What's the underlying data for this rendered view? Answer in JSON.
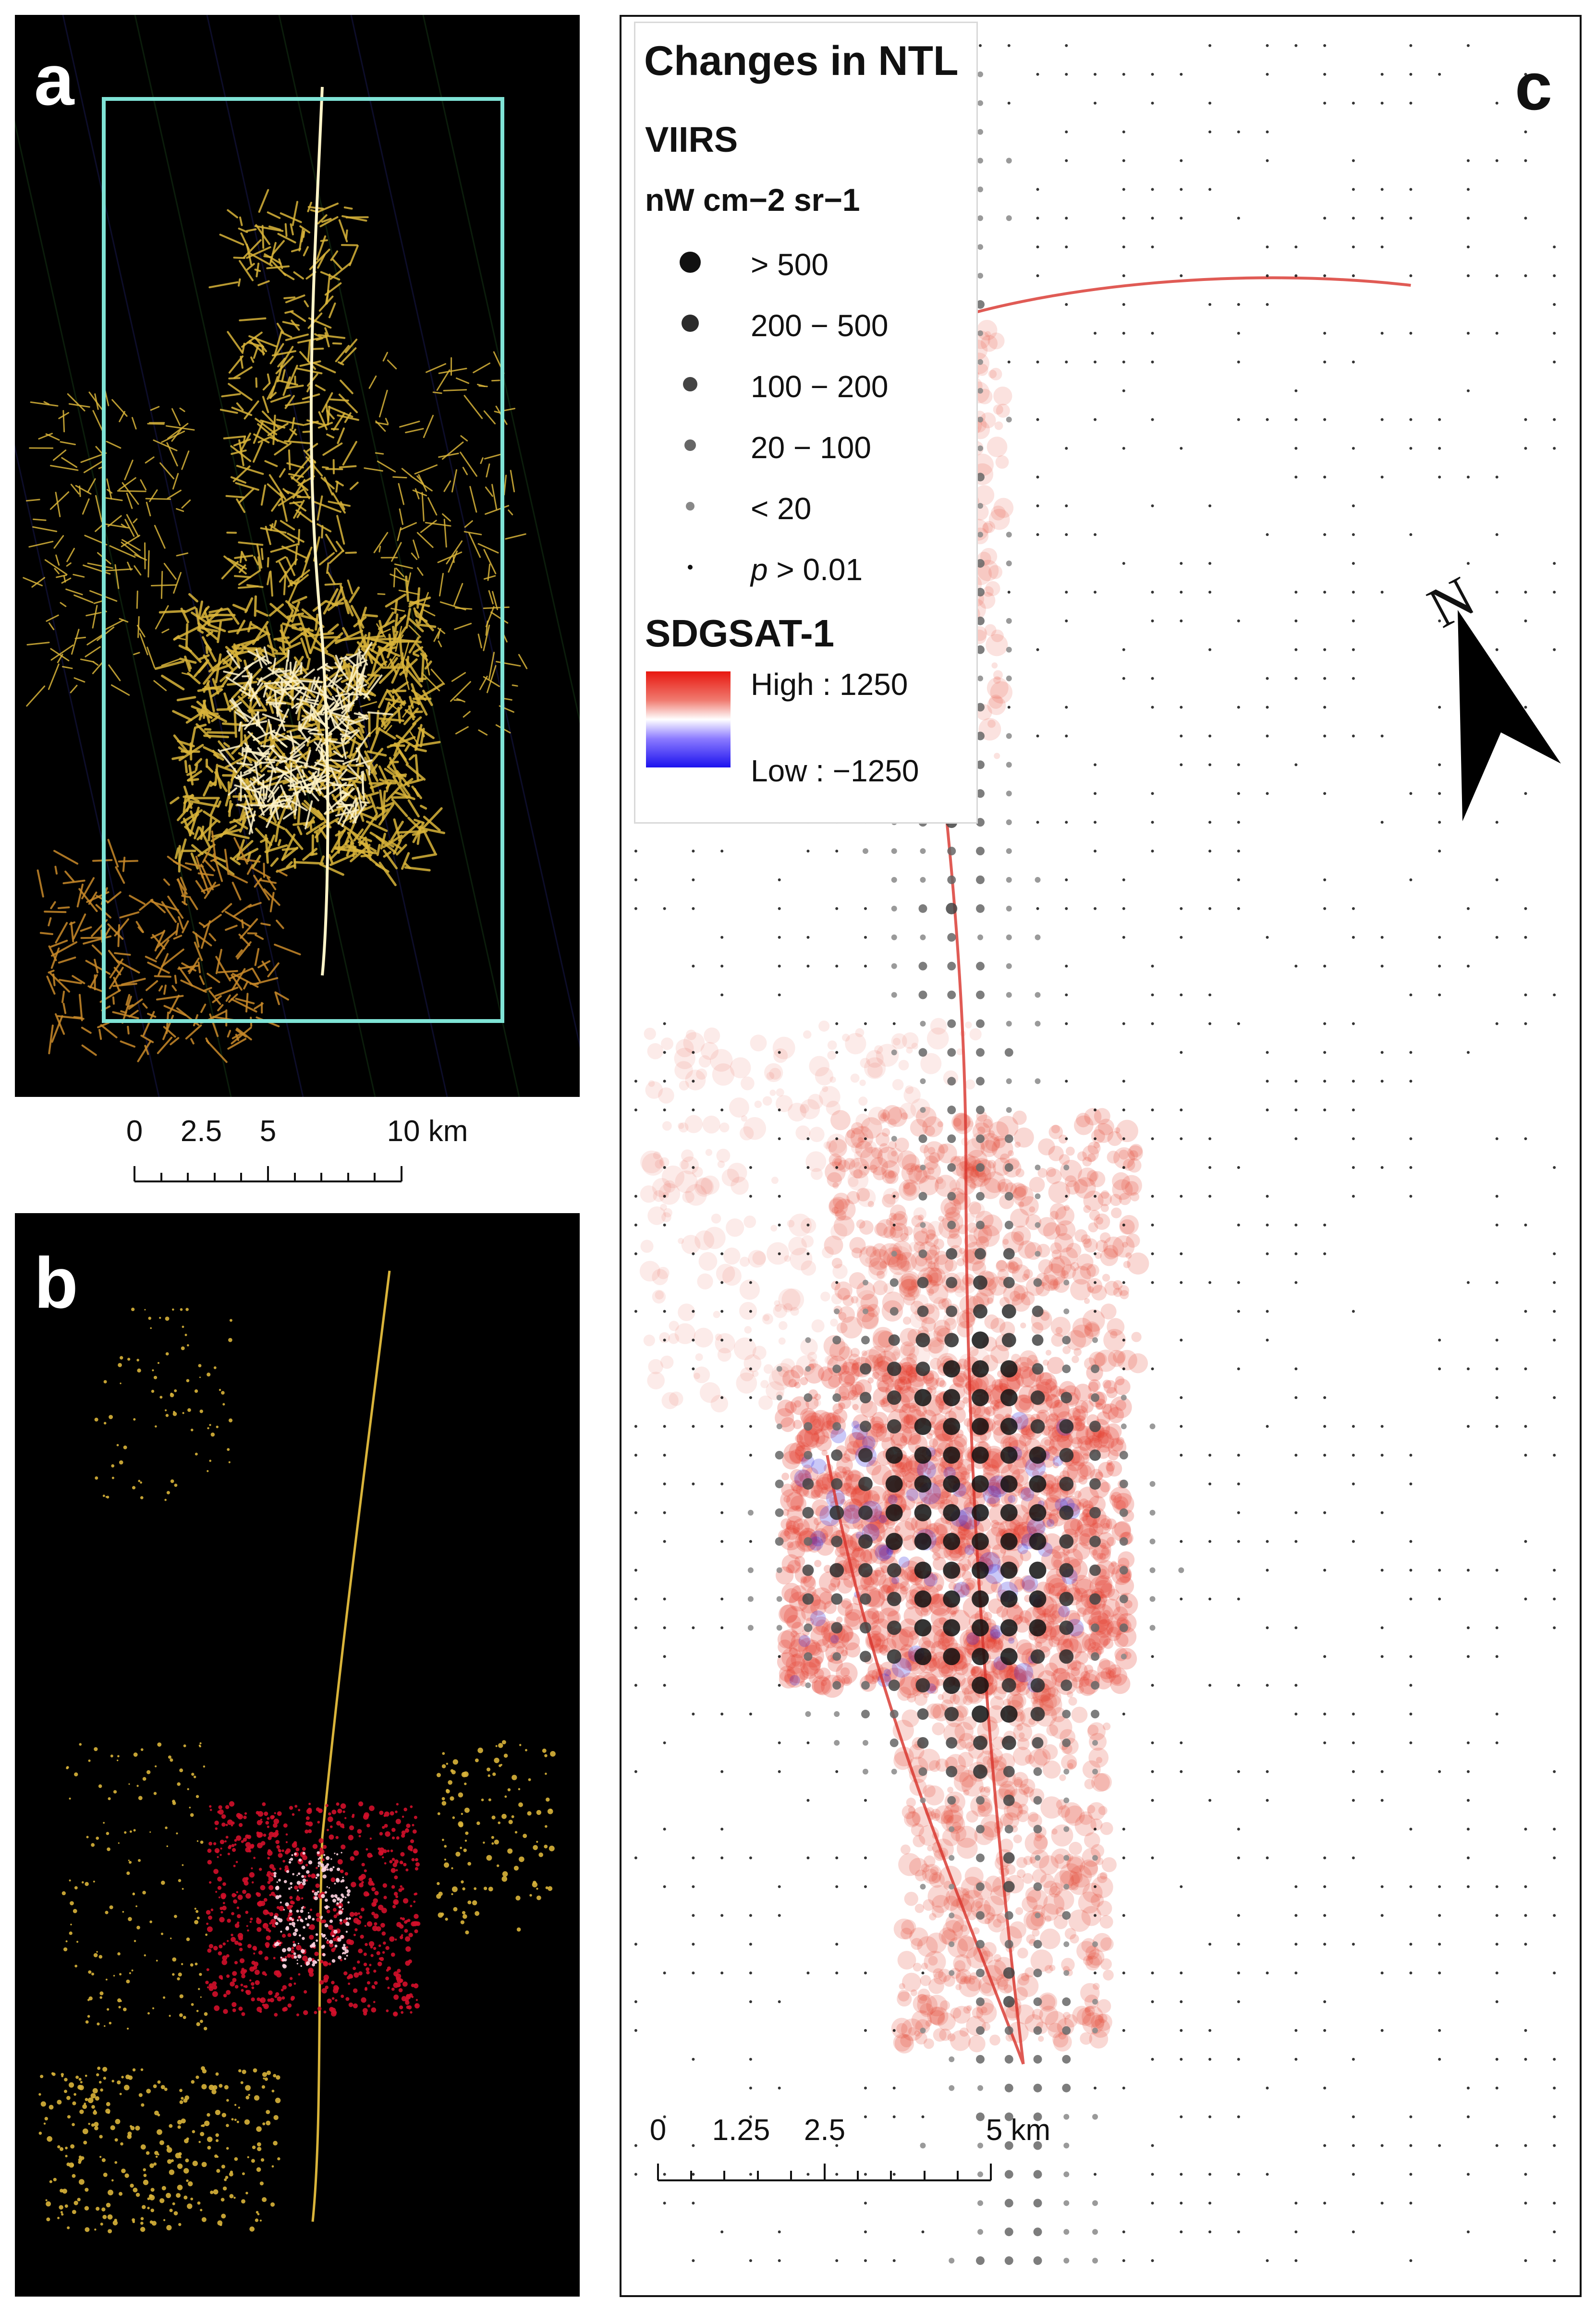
{
  "panels": {
    "a": {
      "label": "a"
    },
    "b": {
      "label": "b"
    },
    "c": {
      "label": "c"
    }
  },
  "scale_ab": {
    "ticks": [
      "0",
      "2.5",
      "5",
      "10 km"
    ],
    "tick_values": [
      0,
      2.5,
      5,
      10
    ]
  },
  "scale_c": {
    "ticks": [
      "0",
      "1.25",
      "2.5",
      "5 km"
    ],
    "tick_values": [
      0,
      1.25,
      2.5,
      5
    ]
  },
  "legend": {
    "title": "Changes in NTL",
    "viirs_heading": "VIIRS",
    "viirs_unit": "nW cm−2 sr−1",
    "classes": [
      {
        "label": "> 500",
        "rank": 5
      },
      {
        "label": "200 − 500",
        "rank": 4
      },
      {
        "label": "100 − 200",
        "rank": 3
      },
      {
        "label": "20 − 100",
        "rank": 2
      },
      {
        "label": "< 20",
        "rank": 1
      },
      {
        "label": "p > 0.01",
        "italic_prefix": "p",
        "rest": " > 0.01",
        "rank": 0
      }
    ],
    "sdgsat_heading": "SDGSAT-1",
    "high_label": "High : 1250",
    "low_label": "Low : −1250",
    "high_color": "#e8170f",
    "low_color": "#1c12ee"
  },
  "north_arrow": {
    "letter": "N"
  },
  "colors": {
    "night_yellow": "#d9b43a",
    "night_white": "#fff4c8",
    "night_red": "#d1102a",
    "box_cyan": "#7fe3d6",
    "change_red": "#e23b2a",
    "change_blue": "#2a22e0"
  }
}
